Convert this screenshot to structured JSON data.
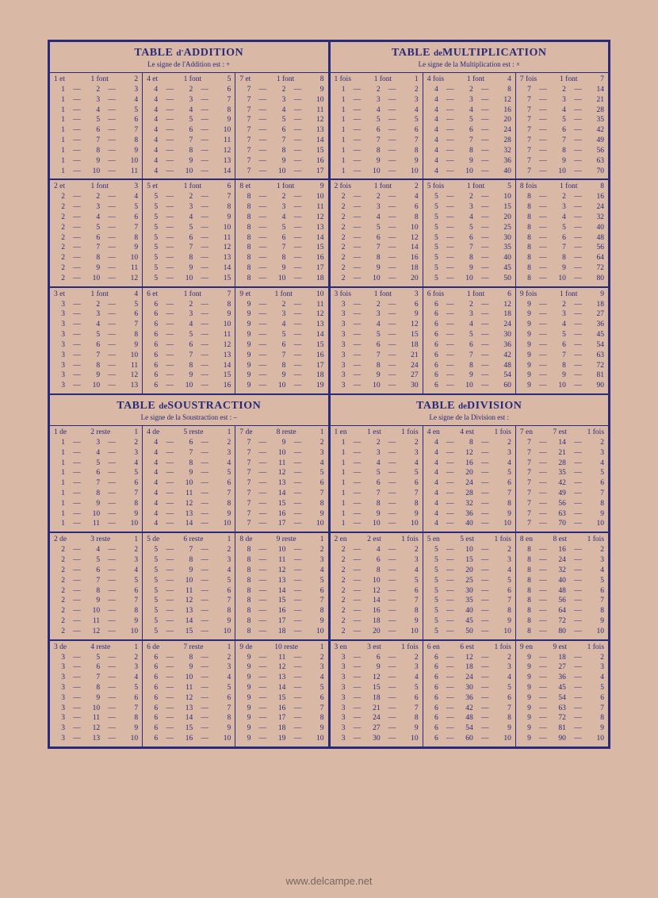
{
  "page": {
    "background_color": "#d9b8a6",
    "ink_color": "#2a2a7a",
    "watermark": "www.delcampe.net"
  },
  "sections": {
    "addition": {
      "title_prefix": "TABLE",
      "title_small": "d'",
      "title_suffix": "ADDITION",
      "sub": "Le signe de l'Addition est : +",
      "header_pattern": [
        "et",
        "font"
      ],
      "line_sep": "—"
    },
    "multiplication": {
      "title_prefix": "TABLE",
      "title_small": "de",
      "title_suffix": "MULTIPLICATION",
      "sub": "Le signe de la Multiplication est : ×",
      "header_pattern": [
        "fois",
        "font"
      ],
      "line_sep": "—"
    },
    "soustraction": {
      "title_prefix": "TABLE",
      "title_small": "de",
      "title_suffix": "SOUSTRACTION",
      "sub": "Le signe de la Soustraction est : –",
      "header_pattern": [
        "de",
        "reste"
      ],
      "line_sep": "—"
    },
    "division": {
      "title_prefix": "TABLE",
      "title_small": "de",
      "title_suffix": "DIVISION",
      "sub": "Le signe de la Division est :",
      "header_pattern": [
        "en",
        "est",
        "fois"
      ],
      "line_sep": "—"
    }
  },
  "addition_blocks": [
    [
      1,
      4,
      7
    ],
    [
      2,
      5,
      8
    ],
    [
      3,
      6,
      9
    ]
  ],
  "multiplication_blocks": [
    [
      1,
      4,
      7
    ],
    [
      2,
      5,
      8
    ],
    [
      3,
      6,
      9
    ]
  ],
  "soustraction_blocks": [
    [
      1,
      4,
      7
    ],
    [
      2,
      5,
      8
    ],
    [
      3,
      6,
      9
    ]
  ],
  "division_blocks": [
    [
      1,
      4,
      7
    ],
    [
      2,
      5,
      8
    ],
    [
      3,
      6,
      9
    ]
  ],
  "row_count": 9
}
